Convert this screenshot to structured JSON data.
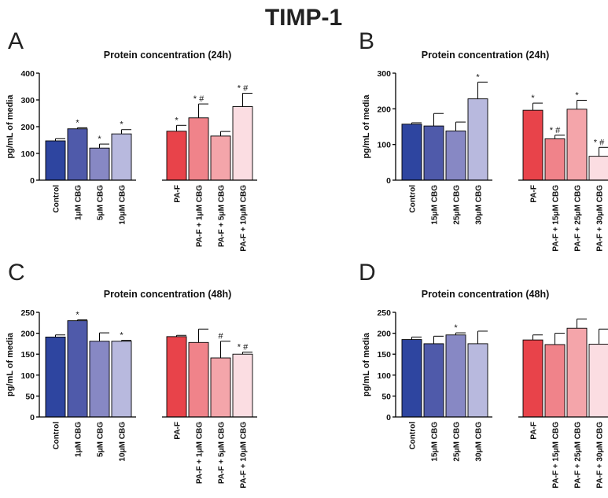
{
  "figure_title": "TIMP-1",
  "palette": {
    "blue": [
      "#2e45a0",
      "#4f5aaa",
      "#8788c4",
      "#b8b9de"
    ],
    "red": [
      "#e8434a",
      "#f0838a",
      "#f4a5aa",
      "#fbdde2"
    ]
  },
  "chart_data": [
    {
      "panel": "A",
      "type": "bar",
      "title": "Protein concentration (24h)",
      "ylabel": "pg/mL of media",
      "ylim": [
        0,
        400
      ],
      "yticks": [
        0,
        100,
        200,
        300,
        400
      ],
      "categories": [
        [
          "Control",
          "",
          ""
        ],
        [
          "1",
          "μ",
          "M CBG"
        ],
        [
          "5",
          "μ",
          "M CBG"
        ],
        [
          "10",
          "μ",
          "M CBG"
        ],
        [
          "PA-F",
          "",
          ""
        ],
        [
          "PA-F + 1",
          "μ",
          "M CBG"
        ],
        [
          "PA-F + 5",
          "μ",
          "M CBG"
        ],
        [
          "PA-F + 10",
          "μ",
          "M CBG"
        ]
      ],
      "values": [
        147,
        192,
        120,
        173,
        183,
        233,
        165,
        275
      ],
      "errors": [
        8,
        4,
        15,
        16,
        22,
        52,
        17,
        50
      ],
      "annotations": [
        "",
        "*",
        "*",
        "*",
        "*",
        "* #",
        "",
        "* #"
      ]
    },
    {
      "panel": "B",
      "type": "bar",
      "title": "Protein concentration (24h)",
      "ylabel": "pg/mL of media",
      "ylim": [
        0,
        300
      ],
      "yticks": [
        0,
        100,
        200,
        300
      ],
      "categories": [
        [
          "Control",
          "",
          ""
        ],
        [
          "15",
          "μ",
          "M CBG"
        ],
        [
          "25",
          "μ",
          "M CBG"
        ],
        [
          "30",
          "μ",
          "M CBG"
        ],
        [
          "PA-F",
          "",
          ""
        ],
        [
          "PA-F + 15",
          "μ",
          "M CBG"
        ],
        [
          "PA-F + 25",
          "μ",
          "M CBG"
        ],
        [
          "PA-F + 30",
          "μ",
          "M CBG"
        ]
      ],
      "values": [
        157,
        152,
        138,
        228,
        196,
        116,
        199,
        67
      ],
      "errors": [
        4,
        35,
        25,
        47,
        20,
        10,
        25,
        25
      ],
      "annotations": [
        "",
        "",
        "",
        "*",
        "*",
        "* #",
        "*",
        "* #"
      ]
    },
    {
      "panel": "C",
      "type": "bar",
      "title": "Protein concentration (48h)",
      "ylabel": "pg/mL of media",
      "ylim": [
        0,
        250
      ],
      "yticks": [
        0,
        50,
        100,
        150,
        200,
        250
      ],
      "categories": [
        [
          "Control",
          "",
          ""
        ],
        [
          "1",
          "μ",
          "M CBG"
        ],
        [
          "5",
          "μ",
          "M CBG"
        ],
        [
          "10",
          "μ",
          "M CBG"
        ],
        [
          "PA-F",
          "",
          ""
        ],
        [
          "PA-F + 1",
          "μ",
          "M CBG"
        ],
        [
          "PA-F + 5",
          "μ",
          "M CBG"
        ],
        [
          "PA-F + 10",
          "μ",
          "M CBG"
        ]
      ],
      "values": [
        191,
        230,
        181,
        181,
        192,
        178,
        141,
        150
      ],
      "errors": [
        5,
        2,
        20,
        2,
        3,
        32,
        40,
        5
      ],
      "annotations": [
        "",
        "*",
        "",
        "*",
        "",
        "",
        "#",
        "* #"
      ]
    },
    {
      "panel": "D",
      "type": "bar",
      "title": "Protein concentration (48h)",
      "ylabel": "pg/mL of media",
      "ylim": [
        0,
        250
      ],
      "yticks": [
        0,
        50,
        100,
        150,
        200,
        250
      ],
      "categories": [
        [
          "Control",
          "",
          ""
        ],
        [
          "15",
          "μ",
          "M CBG"
        ],
        [
          "25",
          "μ",
          "M CBG"
        ],
        [
          "30",
          "μ",
          "M CBG"
        ],
        [
          "PA-F",
          "",
          ""
        ],
        [
          "PA-F + 15",
          "μ",
          "M CBG"
        ],
        [
          "PA-F + 25",
          "μ",
          "M CBG"
        ],
        [
          "PA-F + 30",
          "μ",
          "M CBG"
        ]
      ],
      "values": [
        185,
        175,
        196,
        175,
        184,
        173,
        212,
        174
      ],
      "errors": [
        6,
        18,
        5,
        30,
        12,
        27,
        22,
        36
      ],
      "annotations": [
        "",
        "",
        "*",
        "",
        "",
        "",
        "",
        ""
      ]
    }
  ]
}
